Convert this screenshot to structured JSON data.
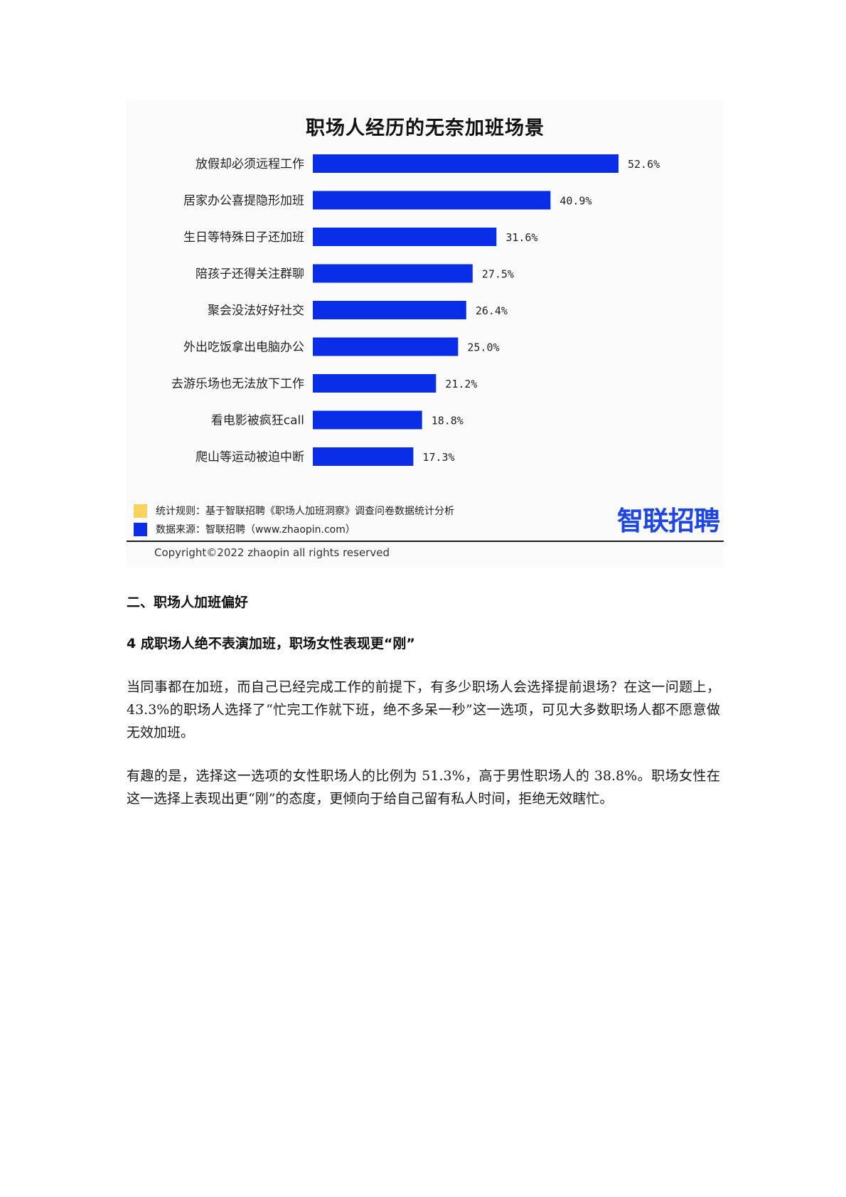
{
  "chart_data": {
    "type": "bar",
    "orientation": "horizontal",
    "title": "职场人经历的无奈加班场景",
    "categories": [
      "放假却必须远程工作",
      "居家办公喜提隐形加班",
      "生日等特殊日子还加班",
      "陪孩子还得关注群聊",
      "聚会没法好好社交",
      "外出吃饭拿出电脑办公",
      "去游乐场也无法放下工作",
      "看电影被疯狂call",
      "爬山等运动被迫中断"
    ],
    "values": [
      52.6,
      40.9,
      31.6,
      27.5,
      26.4,
      25.0,
      21.2,
      18.8,
      17.3
    ],
    "value_labels": [
      "52.6%",
      "40.9%",
      "31.6%",
      "27.5%",
      "26.4%",
      "25.0%",
      "21.2%",
      "18.8%",
      "17.3%"
    ],
    "xlim": [
      0,
      60
    ],
    "grid": false,
    "bar_color": "#0a2ee8"
  },
  "legend": {
    "items": [
      {
        "color": "#f7d25c",
        "text": "统计规则：基于智联招聘《职场人加班洞察》调查问卷数据统计分析"
      },
      {
        "color": "#0a2ee8",
        "text": "数据来源：智联招聘（www.zhaopin.com）"
      }
    ]
  },
  "brand": {
    "logo_text": "智联招聘",
    "color": "#1e45e6"
  },
  "copyright": "Copyright©2022 zhaopin all rights reserved",
  "section_heading": "二、职场人加班偏好",
  "sub_heading": "4 成职场人绝不表演加班，职场女性表现更“刚”",
  "paragraphs": [
    "当同事都在加班，而自己已经完成工作的前提下，有多少职场人会选择提前退场？在这一问题上，43.3%的职场人选择了“忙完工作就下班，绝不多呆一秒”这一选项，可见大多数职场人都不愿意做无效加班。",
    "有趣的是，选择这一选项的女性职场人的比例为 51.3%，高于男性职场人的 38.8%。职场女性在这一选择上表现出更“刚”的态度，更倾向于给自己留有私人时间，拒绝无效瞎忙。"
  ]
}
